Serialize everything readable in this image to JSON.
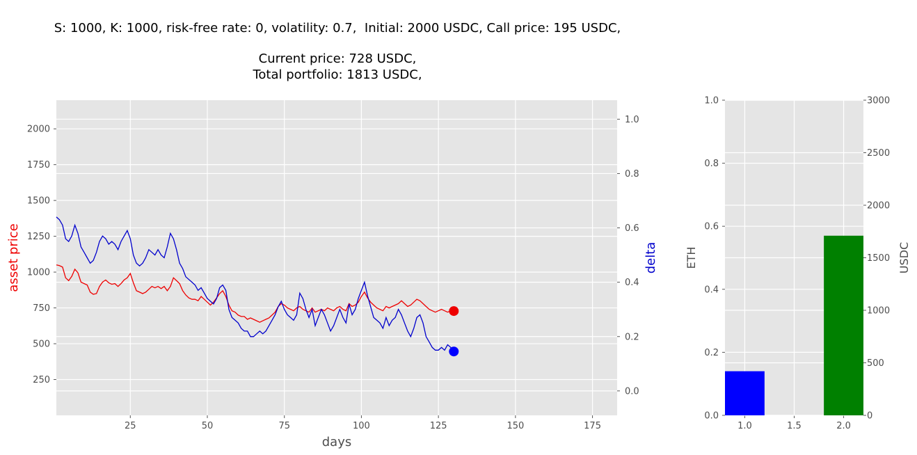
{
  "title": {
    "line1": "S: 1000, K: 1000, risk-free rate: 0, volatility: 0.7,  Initial: 2000 USDC, Call price: 195 USDC,",
    "line2": "Current price: 728 USDC,",
    "line3": "Total portfolio: 1813 USDC,"
  },
  "colors": {
    "plot_bg": "#e5e5e5",
    "grid": "#ffffff",
    "asset_line": "#ee0000",
    "delta_line": "#0000cc",
    "bar_eth": "#0000ff",
    "bar_usdc": "#008000",
    "tick_text": "#4d4d4d"
  },
  "chart_data": [
    {
      "type": "line",
      "xlabel": "days",
      "ylabel": "asset price",
      "ylabel_right": "delta",
      "xlim": [
        1,
        183
      ],
      "ylim": [
        0,
        2200
      ],
      "ylim_right": [
        -0.09,
        1.07
      ],
      "xticks": [
        25,
        50,
        75,
        100,
        125,
        150,
        175
      ],
      "yticks": [
        250,
        500,
        750,
        1000,
        1250,
        1500,
        1750,
        2000
      ],
      "yticks_right": [
        0.0,
        0.2,
        0.4,
        0.6,
        0.8,
        1.0
      ],
      "ytick_labels_right": [
        "0.0",
        "0.2",
        "0.4",
        "0.6",
        "0.8",
        "1.0"
      ],
      "grid": true,
      "series": [
        {
          "name": "asset price",
          "axis": "left",
          "x": [
            1,
            2,
            3,
            4,
            5,
            6,
            7,
            8,
            9,
            10,
            11,
            12,
            13,
            14,
            15,
            16,
            17,
            18,
            19,
            20,
            21,
            22,
            23,
            24,
            25,
            26,
            27,
            28,
            29,
            30,
            31,
            32,
            33,
            34,
            35,
            36,
            37,
            38,
            39,
            40,
            41,
            42,
            43,
            44,
            45,
            46,
            47,
            48,
            49,
            50,
            51,
            52,
            53,
            54,
            55,
            56,
            57,
            58,
            59,
            60,
            61,
            62,
            63,
            64,
            65,
            66,
            67,
            68,
            69,
            70,
            71,
            72,
            73,
            74,
            75,
            76,
            77,
            78,
            79,
            80,
            81,
            82,
            83,
            84,
            85,
            86,
            87,
            88,
            89,
            90,
            91,
            92,
            93,
            94,
            95,
            96,
            97,
            98,
            99,
            100,
            101,
            102,
            103,
            104,
            105,
            106,
            107,
            108,
            109,
            110,
            111,
            112,
            113,
            114,
            115,
            116,
            117,
            118,
            119,
            120,
            121,
            122,
            123,
            124,
            125,
            126,
            127,
            128,
            129,
            130
          ],
          "values": [
            1050,
            1045,
            1035,
            960,
            940,
            970,
            1020,
            995,
            930,
            920,
            910,
            860,
            845,
            850,
            900,
            930,
            945,
            925,
            915,
            920,
            900,
            920,
            945,
            960,
            990,
            925,
            870,
            860,
            850,
            860,
            880,
            900,
            890,
            900,
            885,
            900,
            870,
            900,
            960,
            940,
            920,
            870,
            840,
            820,
            810,
            810,
            800,
            830,
            810,
            790,
            770,
            790,
            820,
            850,
            870,
            830,
            770,
            730,
            720,
            700,
            690,
            690,
            670,
            680,
            670,
            660,
            650,
            660,
            670,
            680,
            700,
            720,
            760,
            780,
            770,
            750,
            740,
            730,
            750,
            760,
            740,
            730,
            720,
            750,
            720,
            730,
            740,
            730,
            750,
            740,
            730,
            750,
            760,
            740,
            730,
            780,
            760,
            770,
            790,
            830,
            860,
            820,
            790,
            770,
            750,
            740,
            730,
            760,
            750,
            760,
            770,
            780,
            800,
            780,
            760,
            770,
            790,
            810,
            800,
            780,
            760,
            740,
            730,
            720,
            730,
            740,
            730,
            720,
            730,
            728
          ]
        },
        {
          "name": "delta",
          "axis": "right",
          "x": [
            1,
            2,
            3,
            4,
            5,
            6,
            7,
            8,
            9,
            10,
            11,
            12,
            13,
            14,
            15,
            16,
            17,
            18,
            19,
            20,
            21,
            22,
            23,
            24,
            25,
            26,
            27,
            28,
            29,
            30,
            31,
            32,
            33,
            34,
            35,
            36,
            37,
            38,
            39,
            40,
            41,
            42,
            43,
            44,
            45,
            46,
            47,
            48,
            49,
            50,
            51,
            52,
            53,
            54,
            55,
            56,
            57,
            58,
            59,
            60,
            61,
            62,
            63,
            64,
            65,
            66,
            67,
            68,
            69,
            70,
            71,
            72,
            73,
            74,
            75,
            76,
            77,
            78,
            79,
            80,
            81,
            82,
            83,
            84,
            85,
            86,
            87,
            88,
            89,
            90,
            91,
            92,
            93,
            94,
            95,
            96,
            97,
            98,
            99,
            100,
            101,
            102,
            103,
            104,
            105,
            106,
            107,
            108,
            109,
            110,
            111,
            112,
            113,
            114,
            115,
            116,
            117,
            118,
            119,
            120,
            121,
            122,
            123,
            124,
            125,
            126,
            127,
            128,
            129,
            130
          ],
          "values": [
            0.64,
            0.63,
            0.61,
            0.56,
            0.55,
            0.57,
            0.61,
            0.58,
            0.53,
            0.51,
            0.49,
            0.47,
            0.48,
            0.51,
            0.55,
            0.57,
            0.56,
            0.54,
            0.55,
            0.54,
            0.52,
            0.55,
            0.57,
            0.59,
            0.56,
            0.5,
            0.47,
            0.46,
            0.47,
            0.49,
            0.52,
            0.51,
            0.5,
            0.52,
            0.5,
            0.49,
            0.53,
            0.58,
            0.56,
            0.52,
            0.47,
            0.45,
            0.42,
            0.41,
            0.4,
            0.39,
            0.37,
            0.38,
            0.36,
            0.34,
            0.33,
            0.32,
            0.34,
            0.38,
            0.39,
            0.37,
            0.3,
            0.27,
            0.26,
            0.25,
            0.23,
            0.22,
            0.22,
            0.2,
            0.2,
            0.21,
            0.22,
            0.21,
            0.22,
            0.24,
            0.26,
            0.28,
            0.31,
            0.33,
            0.3,
            0.28,
            0.27,
            0.26,
            0.28,
            0.36,
            0.34,
            0.3,
            0.27,
            0.3,
            0.24,
            0.27,
            0.3,
            0.28,
            0.25,
            0.22,
            0.24,
            0.27,
            0.3,
            0.27,
            0.25,
            0.32,
            0.28,
            0.3,
            0.34,
            0.37,
            0.4,
            0.35,
            0.31,
            0.27,
            0.26,
            0.25,
            0.23,
            0.27,
            0.24,
            0.26,
            0.27,
            0.3,
            0.28,
            0.25,
            0.22,
            0.2,
            0.23,
            0.27,
            0.28,
            0.25,
            0.2,
            0.18,
            0.16,
            0.15,
            0.15,
            0.16,
            0.15,
            0.17,
            0.16,
            0.145
          ]
        }
      ],
      "markers": [
        {
          "axis": "left",
          "x": 130,
          "value": 728,
          "color": "#ee0000"
        },
        {
          "axis": "right",
          "x": 130,
          "value": 0.145,
          "color": "#0000ff"
        }
      ]
    },
    {
      "type": "bar",
      "ylabel": "ETH",
      "ylabel_right": "USDC",
      "xlim": [
        0.8,
        2.2
      ],
      "ylim": [
        0,
        1.0
      ],
      "ylim_right": [
        0,
        3000
      ],
      "xticks": [
        1.0,
        1.5,
        2.0
      ],
      "xtick_labels": [
        "1.0",
        "1.5",
        "2.0"
      ],
      "yticks": [
        0.0,
        0.2,
        0.4,
        0.6,
        0.8,
        1.0
      ],
      "ytick_labels": [
        "0.0",
        "0.2",
        "0.4",
        "0.6",
        "0.8",
        "1.0"
      ],
      "yticks_right": [
        0,
        500,
        1000,
        1500,
        2000,
        2500,
        3000
      ],
      "grid": true,
      "bars": [
        {
          "x": 1.0,
          "value": 0.14,
          "axis": "left",
          "color": "#0000ff"
        },
        {
          "x": 2.0,
          "value": 1710,
          "axis": "right",
          "color": "#008000"
        }
      ]
    }
  ]
}
